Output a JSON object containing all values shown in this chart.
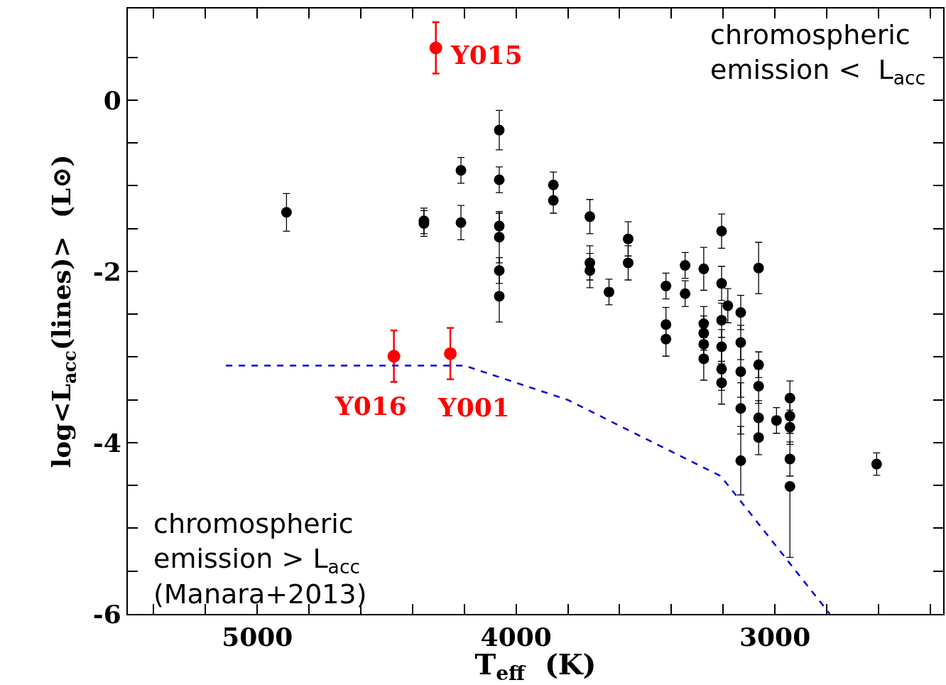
{
  "chart_data": {
    "type": "scatter",
    "xlabel": "T$_{eff}$  (K)",
    "ylabel": "log<L$_{acc}$(lines)>  (L⊙)",
    "xlim": [
      5500,
      2350
    ],
    "ylim": [
      -6,
      1.07
    ],
    "xticks": [
      {
        "value": 5400,
        "label": null
      },
      {
        "value": 5200,
        "label": null
      },
      5000,
      {
        "value": 4800,
        "label": null
      },
      {
        "value": 4600,
        "label": null
      },
      {
        "value": 4400,
        "label": null
      },
      {
        "value": 4200,
        "label": null
      },
      4000,
      {
        "value": 3800,
        "label": null
      },
      {
        "value": 3600,
        "label": null
      },
      {
        "value": 3400,
        "label": null
      },
      {
        "value": 3200,
        "label": null
      },
      3000,
      {
        "value": 2800,
        "label": null
      },
      {
        "value": 2600,
        "label": null
      },
      {
        "value": 2400,
        "label": null
      }
    ],
    "yticks": [
      -6,
      {
        "value": -5.5,
        "label": null
      },
      {
        "value": -5,
        "label": null
      },
      {
        "value": -4.5,
        "label": null
      },
      -4,
      {
        "value": -3.5,
        "label": null
      },
      {
        "value": -3,
        "label": null
      },
      {
        "value": -2.5,
        "label": null
      },
      -2,
      {
        "value": -1.5,
        "label": null
      },
      {
        "value": -1,
        "label": null
      },
      {
        "value": -0.5,
        "label": null
      },
      0,
      {
        "value": 0.5,
        "label": null
      }
    ],
    "marker": "circle",
    "series": [
      {
        "color": "#000000",
        "x": [
          4887,
          4356,
          4356,
          4213,
          4213,
          4065,
          4065,
          4065,
          4065,
          4065,
          4065,
          3856,
          3856,
          3715,
          3715,
          3715,
          3641,
          3567,
          3567,
          3421,
          3421,
          3421,
          3347,
          3347,
          3275,
          3275,
          3275,
          3275,
          3275,
          3206,
          3206,
          3206,
          3206,
          3206,
          3206,
          3182,
          3132,
          3132,
          3132,
          3132,
          3132,
          3063,
          3063,
          3063,
          3063,
          3063,
          2994,
          2942,
          2942,
          2942,
          2942,
          2942,
          2607
        ],
        "values": [
          -1.31,
          -1.41,
          -1.44,
          -0.82,
          -1.43,
          -0.35,
          -0.93,
          -1.47,
          -1.6,
          -1.99,
          -2.29,
          -0.99,
          -1.17,
          -1.36,
          -1.9,
          -1.99,
          -2.24,
          -1.62,
          -1.9,
          -2.17,
          -2.62,
          -2.79,
          -1.93,
          -2.26,
          -1.97,
          -2.61,
          -2.72,
          -2.85,
          -3.02,
          -1.53,
          -2.14,
          -2.57,
          -2.88,
          -3.14,
          -3.3,
          -2.4,
          -2.48,
          -2.83,
          -3.17,
          -3.6,
          -4.21,
          -1.96,
          -3.09,
          -3.34,
          -3.71,
          -3.94,
          -3.74,
          -3.48,
          -3.69,
          -3.82,
          -4.19,
          -4.51,
          -4.25
        ],
        "errors": [
          0.22,
          0.15,
          0.15,
          0.15,
          0.2,
          0.23,
          0.15,
          0.15,
          0.3,
          0.15,
          0.3,
          0.15,
          0.15,
          0.2,
          0.2,
          0.2,
          0.15,
          0.2,
          0.2,
          0.15,
          0.2,
          0.2,
          0.15,
          0.15,
          0.25,
          0.2,
          0.2,
          0.2,
          0.25,
          0.2,
          0.2,
          0.2,
          0.2,
          0.25,
          0.25,
          0.2,
          0.2,
          0.2,
          0.3,
          0.3,
          0.4,
          0.3,
          0.15,
          0.2,
          0.2,
          0.2,
          0.15,
          0.2,
          0.2,
          0.2,
          0.2,
          [
            -5.34,
            -4.51
          ],
          0.13
        ]
      },
      {
        "color": "#ff0000",
        "x": [
          4310,
          4472,
          4254
        ],
        "values": [
          0.61,
          -2.99,
          -2.96
        ],
        "errors": [
          0.3,
          0.3,
          0.3
        ]
      },
      {
        "type": "line",
        "color": "#0000dd",
        "line_style": "dashed",
        "marker": "none",
        "x": [
          5121,
          4199,
          3801,
          3209,
          2788
        ],
        "values": [
          -3.1,
          -3.1,
          -3.5,
          -4.39,
          -6.0
        ]
      }
    ],
    "annotations": [
      {
        "text": "Y015",
        "x": 4310,
        "y": 0.61
      },
      {
        "text": "Y016",
        "x": 4472,
        "y": -2.99
      },
      {
        "text": "Y001",
        "x": 4254,
        "y": -2.96
      },
      "chromospheric\nemission <  L$_{acc}$",
      "chromospheric\nemission > L$_{acc}$\n(Manara+2013)"
    ]
  }
}
